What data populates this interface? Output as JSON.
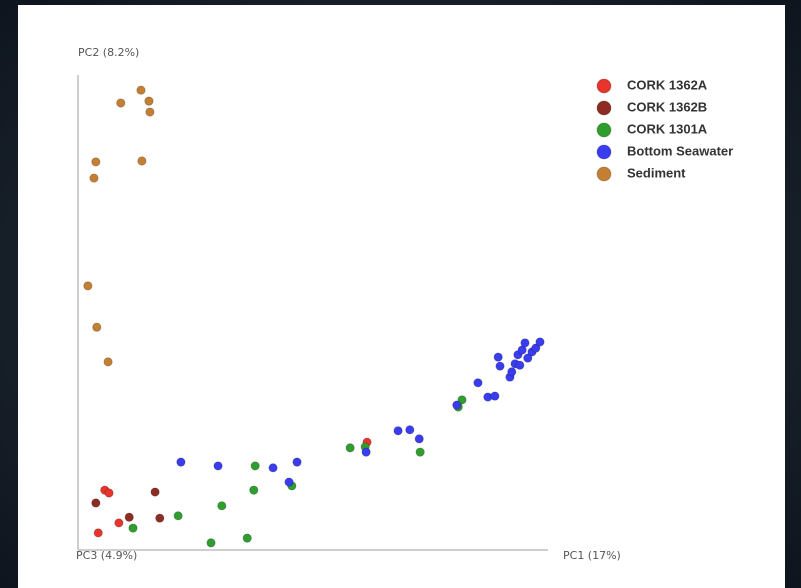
{
  "chart_data": {
    "type": "scatter",
    "xlabel": "PC1 (17%)",
    "ylabel": "PC2 (8.2%)",
    "zlabel": "PC3 (4.9%)",
    "xlim": [
      0,
      100
    ],
    "ylim": [
      0,
      100
    ],
    "series": [
      {
        "name": "CORK 1362A",
        "color": "#e8352c",
        "x": [
          5.7,
          6.6,
          4.3,
          8.7,
          61.5
        ],
        "y": [
          12.6,
          12.0,
          3.6,
          5.7,
          22.7
        ]
      },
      {
        "name": "CORK 1362B",
        "color": "#8e2b22",
        "x": [
          3.8,
          16.4,
          10.9,
          17.4
        ],
        "y": [
          9.9,
          12.2,
          6.9,
          6.7
        ]
      },
      {
        "name": "CORK 1301A",
        "color": "#2f9e2f",
        "x": [
          11.7,
          21.3,
          30.6,
          28.3,
          36.0,
          37.7,
          37.4,
          45.5,
          57.9,
          61.1,
          72.8,
          80.9,
          81.7
        ],
        "y": [
          4.6,
          7.2,
          9.3,
          1.5,
          2.5,
          17.7,
          12.6,
          13.5,
          21.5,
          21.7,
          20.6,
          30.1,
          31.6
        ]
      },
      {
        "name": "Bottom Seawater",
        "color": "#3a3cef",
        "x": [
          21.9,
          29.8,
          41.5,
          46.6,
          44.9,
          61.3,
          68.1,
          70.6,
          72.6,
          80.6,
          85.1,
          87.2,
          88.7,
          89.4,
          89.8,
          91.9,
          93.0,
          93.6,
          94.5,
          95.1,
          95.7,
          96.6,
          97.4,
          98.3,
          94.0,
          92.3
        ],
        "y": [
          18.5,
          17.7,
          17.3,
          18.5,
          14.3,
          20.6,
          25.1,
          25.3,
          23.4,
          30.5,
          35.2,
          32.2,
          32.4,
          40.6,
          38.7,
          36.4,
          39.2,
          41.1,
          42.1,
          43.6,
          40.4,
          41.7,
          42.5,
          43.8,
          38.9,
          37.5
        ]
      },
      {
        "name": "Sediment",
        "color": "#c47f33",
        "x": [
          9.1,
          13.4,
          15.1,
          15.3,
          3.8,
          3.4,
          13.6,
          2.1,
          4.0,
          6.4
        ],
        "y": [
          94.1,
          96.8,
          94.5,
          92.2,
          81.7,
          78.3,
          81.9,
          55.6,
          46.9,
          39.6
        ]
      }
    ]
  }
}
